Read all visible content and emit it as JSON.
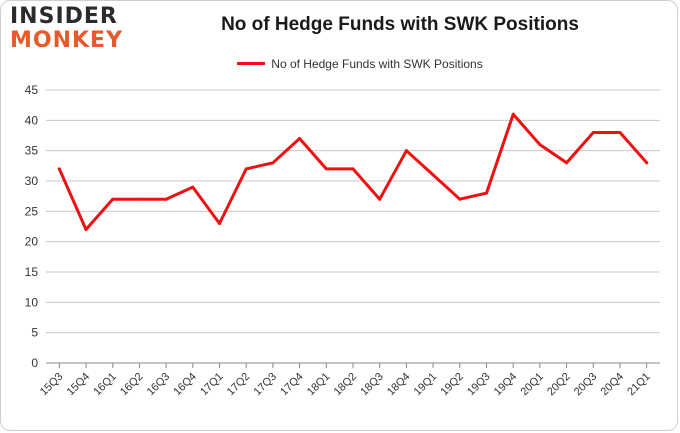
{
  "logo": {
    "line1": "INSIDER",
    "line2": "MONKEY"
  },
  "colors": {
    "series": "#ee1111",
    "grid": "#c8c8c8",
    "axis": "#888888",
    "text": "#333333"
  },
  "chart_data": {
    "type": "line",
    "title": "No of Hedge Funds with SWK Positions",
    "xlabel": "",
    "ylabel": "",
    "ylim": [
      0,
      45
    ],
    "yticks": [
      0,
      5,
      10,
      15,
      20,
      25,
      30,
      35,
      40,
      45
    ],
    "grid": true,
    "legend_position": "top-center",
    "categories": [
      "15Q3",
      "15Q4",
      "16Q1",
      "16Q2",
      "16Q3",
      "16Q4",
      "17Q1",
      "17Q2",
      "17Q3",
      "17Q4",
      "18Q1",
      "18Q2",
      "18Q3",
      "18Q4",
      "19Q1",
      "19Q2",
      "19Q3",
      "19Q4",
      "20Q1",
      "20Q2",
      "20Q3",
      "20Q4",
      "21Q1"
    ],
    "series": [
      {
        "name": "No of Hedge Funds with SWK Positions",
        "values": [
          32,
          22,
          27,
          27,
          27,
          29,
          23,
          32,
          33,
          37,
          32,
          32,
          27,
          35,
          31,
          27,
          28,
          41,
          36,
          33,
          38,
          38,
          33
        ]
      }
    ]
  }
}
